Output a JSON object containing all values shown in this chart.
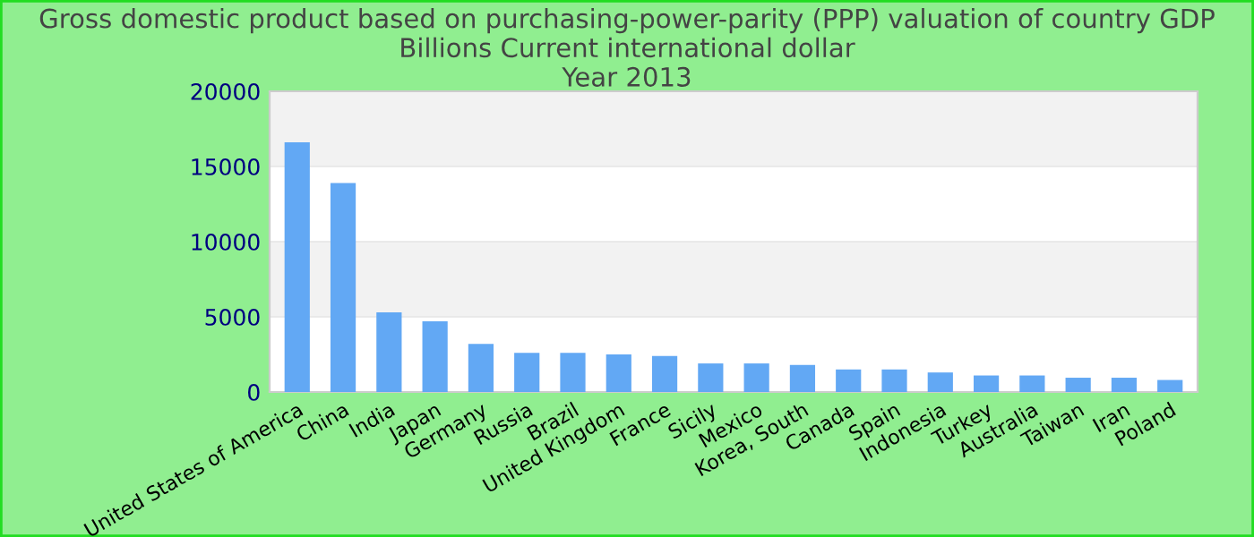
{
  "chart_data": {
    "type": "bar",
    "title": "Gross domestic product based on purchasing-power-parity (PPP) valuation of country GDP Billions Current international dollar\nYear 2013",
    "categories": [
      "United States of America",
      "China",
      "India",
      "Japan",
      "Germany",
      "Russia",
      "Brazil",
      "United Kingdom",
      "France",
      "Sicily",
      "Mexico",
      "Korea, South",
      "Canada",
      "Spain",
      "Indonesia",
      "Turkey",
      "Australia",
      "Taiwan",
      "Iran",
      "Poland"
    ],
    "values": [
      16600,
      13900,
      5300,
      4700,
      3200,
      2600,
      2600,
      2500,
      2400,
      1900,
      1900,
      1800,
      1500,
      1500,
      1300,
      1100,
      1100,
      950,
      950,
      800
    ],
    "color": "#62a8f4",
    "ylim": [
      0,
      20000
    ],
    "yticks": [
      0,
      5000,
      10000,
      15000,
      20000
    ],
    "grid": "y",
    "legend": false
  }
}
